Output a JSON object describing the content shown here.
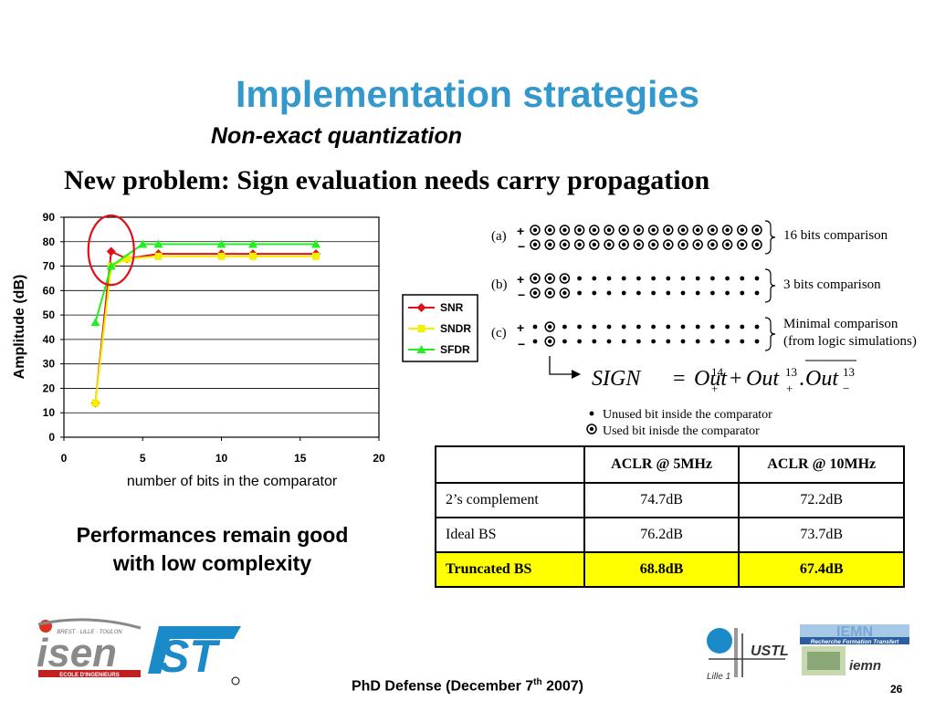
{
  "slide": {
    "title": "Implementation strategies",
    "subtitle": "Non-exact quantization",
    "problem": "New problem: Sign evaluation needs carry propagation",
    "performance_note_line1": "Performances remain good",
    "performance_note_line2": "with low complexity",
    "footer_prefix": "PhD Defense (December 7",
    "footer_sup": "th",
    "footer_suffix": " 2007)",
    "page_number": "26"
  },
  "chart_data": {
    "type": "line",
    "xlabel": "number of bits in the comparator",
    "ylabel": "Amplitude (dB)",
    "xlim": [
      0,
      20
    ],
    "ylim": [
      0,
      90
    ],
    "xticks": [
      "0",
      "5",
      "10",
      "15",
      "20"
    ],
    "yticks": [
      "0",
      "10",
      "20",
      "30",
      "40",
      "50",
      "60",
      "70",
      "80",
      "90"
    ],
    "grid": "horizontal",
    "legend": "right",
    "series": [
      {
        "name": "SNR",
        "color": "#e0101a",
        "marker": "diamond",
        "x": [
          2,
          3,
          4,
          6,
          10,
          12,
          16
        ],
        "y": [
          14,
          76,
          73,
          75,
          75,
          75,
          75
        ]
      },
      {
        "name": "SNDR",
        "color": "#f2ef00",
        "marker": "square",
        "x": [
          2,
          3,
          4,
          6,
          10,
          12,
          16
        ],
        "y": [
          14,
          70,
          73,
          74,
          74,
          74,
          74
        ]
      },
      {
        "name": "SFDR",
        "color": "#22ee22",
        "marker": "triangle",
        "x": [
          2,
          3,
          5,
          6,
          10,
          12,
          16
        ],
        "y": [
          47,
          70,
          79,
          79,
          79,
          79,
          79
        ]
      }
    ],
    "annotation": "red ellipse around transition near 3 bits"
  },
  "diagram": {
    "rows": [
      {
        "label": "(a)",
        "desc": "16 bits comparison"
      },
      {
        "label": "(b)",
        "desc": "3 bits comparison"
      },
      {
        "label": "(c)",
        "desc_line1": "Minimal comparison",
        "desc_line2": "(from logic simulations)"
      }
    ],
    "plus": "+",
    "minus": "−",
    "legend_unused": "Unused bit inside the comparator",
    "legend_used": "Used bit inisde the comparator",
    "formula": {
      "sign": "SIGN",
      "eq": "=",
      "out": "Out",
      "exp14": "14",
      "exp13": "13",
      "sub_plus": "+",
      "sub_minus": "−",
      "plus_op": "+",
      "dot": "."
    }
  },
  "table": {
    "headers": [
      "",
      "ACLR @ 5MHz",
      "ACLR @ 10MHz"
    ],
    "rows": [
      [
        "2’s complement",
        "74.7dB",
        "72.2dB"
      ],
      [
        "Ideal BS",
        "76.2dB",
        "73.7dB"
      ],
      [
        "Truncated BS",
        "68.8dB",
        "67.4dB"
      ]
    ]
  },
  "logos": {
    "isen_text": "isen",
    "isen_sub": "ECOLE D'INGENIEURS",
    "isen_tag": "BREST · LILLE · TOULON",
    "st_text": "ST",
    "ustl_text": "USTL",
    "lille_text": "Lille 1",
    "iemn_text": "IEMN",
    "iemn_band": "Recherche Formation Transfert",
    "iemn_small": "iemn"
  },
  "colors": {
    "title": "#3399cc",
    "highlight": "#ffff00",
    "snr": "#e0101a",
    "sndr": "#f2ef00",
    "sfdr": "#22ee22"
  }
}
